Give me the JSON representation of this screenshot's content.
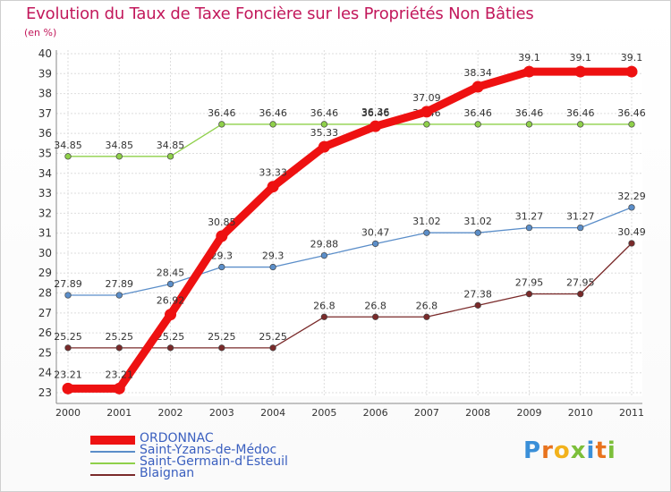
{
  "header": {
    "title": "Evolution du Taux de Taxe Foncière sur les Propriétés Non Bâties",
    "unit": "(en %)"
  },
  "logo": {
    "text": "Proxiti"
  },
  "chart_data": {
    "type": "line",
    "title": "Evolution du Taux de Taxe Foncière sur les Propriétés Non Bâties",
    "ylabel": "(en %)",
    "x": [
      "2000",
      "2001",
      "2002",
      "2003",
      "2004",
      "2005",
      "2006",
      "2007",
      "2008",
      "2009",
      "2010",
      "2011"
    ],
    "ylim": [
      23,
      40
    ],
    "yticks": [
      23,
      24,
      25,
      26,
      27,
      28,
      29,
      30,
      31,
      32,
      33,
      34,
      35,
      36,
      37,
      38,
      39,
      40
    ],
    "grid": true,
    "legend_position": "bottom-left",
    "series": [
      {
        "name": "Saint-Yzans-de-Médoc",
        "color": "#5b8ec9",
        "bold": false,
        "values": [
          27.89,
          27.89,
          28.45,
          29.3,
          29.3,
          29.88,
          30.47,
          31.02,
          31.02,
          31.27,
          31.27,
          32.29
        ],
        "labels": [
          "27.89",
          "27.89",
          "28.45",
          "29.3",
          "29.3",
          "29.88",
          "30.47",
          "31.02",
          "31.02",
          "31.27",
          "31.27",
          "32.29"
        ]
      },
      {
        "name": "Saint-Germain-d'Esteuil",
        "color": "#8fd04a",
        "bold": false,
        "values": [
          34.85,
          34.85,
          34.85,
          36.46,
          36.46,
          36.46,
          36.46,
          36.46,
          36.46,
          36.46,
          36.46,
          36.46
        ],
        "labels": [
          "34.85",
          "34.85",
          "34.85",
          "36.46",
          "36.46",
          "36.46",
          "36.46",
          "36.46",
          "36.46",
          "36.46",
          "36.46",
          "36.46"
        ]
      },
      {
        "name": "Blaignan",
        "color": "#7a2a2a",
        "bold": false,
        "values": [
          25.25,
          25.25,
          25.25,
          25.25,
          25.25,
          26.8,
          26.8,
          26.8,
          27.38,
          27.95,
          27.95,
          30.49
        ],
        "labels": [
          "25.25",
          "25.25",
          "25.25",
          "25.25",
          "25.25",
          "26.8",
          "26.8",
          "26.8",
          "27.38",
          "27.95",
          "27.95",
          "30.49"
        ]
      },
      {
        "name": "ORDONNAC",
        "color": "#ee1111",
        "bold": true,
        "values": [
          23.21,
          23.21,
          26.92,
          30.85,
          33.33,
          35.33,
          36.36,
          37.09,
          38.34,
          39.1,
          39.1,
          39.1
        ],
        "labels": [
          "23.21",
          "23.21",
          "26.92",
          "30.85",
          "33.33",
          "35.33",
          "36.36",
          "37.09",
          "38.34",
          "39.1",
          "39.1",
          "39.1"
        ]
      }
    ],
    "legend": [
      "ORDONNAC",
      "Saint-Yzans-de-Médoc",
      "Saint-Germain-d'Esteuil",
      "Blaignan"
    ]
  }
}
